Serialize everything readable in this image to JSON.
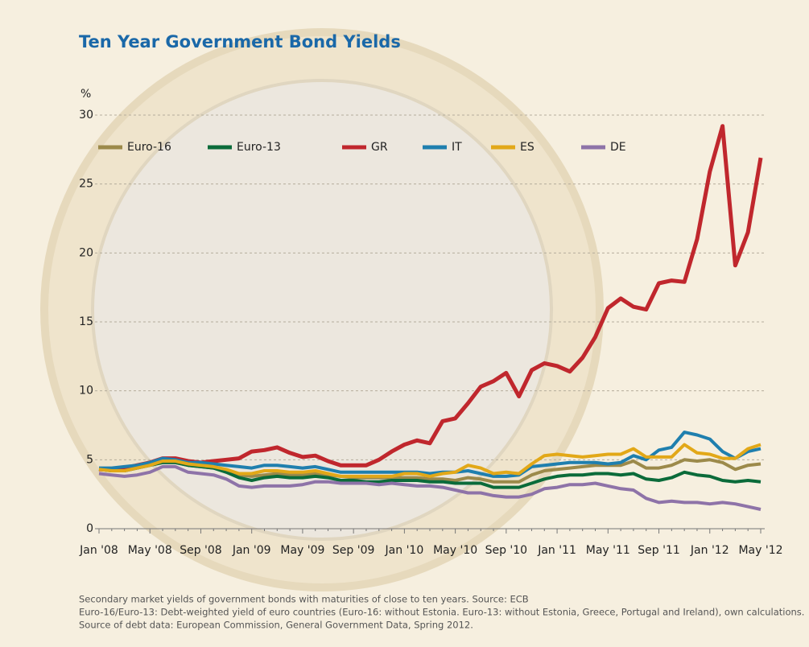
{
  "chart_data": {
    "type": "line",
    "title": "Ten Year Government Bond Yields",
    "y_label": "%",
    "categories": [
      "Jan '08",
      null,
      null,
      null,
      "May '08",
      null,
      null,
      null,
      "Sep '08",
      null,
      null,
      null,
      "Jan '09",
      null,
      null,
      null,
      "May '09",
      null,
      null,
      null,
      "Sep '09",
      null,
      null,
      null,
      "Jan '10",
      null,
      null,
      null,
      "May '10",
      null,
      null,
      null,
      "Sep '10",
      null,
      null,
      null,
      "Jan '11",
      null,
      null,
      null,
      "May '11",
      null,
      null,
      null,
      "Sep '11",
      null,
      null,
      null,
      "Jan '12",
      null,
      null,
      null,
      "May '12"
    ],
    "ylim": [
      0,
      30
    ],
    "yticks": [
      0,
      5,
      10,
      15,
      20,
      25,
      30
    ],
    "grid": true,
    "series": [
      {
        "name": "Euro-16",
        "color": "#9c8a4a",
        "values": [
          4.3,
          4.2,
          4.2,
          4.4,
          4.6,
          4.8,
          4.8,
          4.6,
          4.5,
          4.4,
          4.2,
          3.9,
          3.8,
          3.9,
          4.0,
          3.9,
          3.9,
          4.0,
          3.9,
          3.8,
          3.7,
          3.7,
          3.7,
          3.7,
          3.7,
          3.7,
          3.6,
          3.6,
          3.5,
          3.7,
          3.6,
          3.4,
          3.4,
          3.4,
          3.9,
          4.2,
          4.3,
          4.4,
          4.5,
          4.6,
          4.6,
          4.6,
          4.9,
          4.4,
          4.4,
          4.6,
          5.0,
          4.9,
          5.0,
          4.8,
          4.3,
          4.6,
          4.7
        ]
      },
      {
        "name": "Euro-13",
        "color": "#0b6b3a",
        "values": [
          4.3,
          4.2,
          4.2,
          4.4,
          4.6,
          4.8,
          4.8,
          4.6,
          4.5,
          4.4,
          4.1,
          3.7,
          3.5,
          3.7,
          3.8,
          3.7,
          3.7,
          3.8,
          3.7,
          3.5,
          3.5,
          3.4,
          3.4,
          3.5,
          3.5,
          3.5,
          3.4,
          3.4,
          3.3,
          3.3,
          3.3,
          3.0,
          3.0,
          3.0,
          3.3,
          3.6,
          3.8,
          3.9,
          3.9,
          4.0,
          4.0,
          3.9,
          4.0,
          3.6,
          3.5,
          3.7,
          4.1,
          3.9,
          3.8,
          3.5,
          3.4,
          3.5,
          3.4
        ]
      },
      {
        "name": "GR",
        "color": "#c0272d",
        "values": [
          4.3,
          4.3,
          4.4,
          4.6,
          4.8,
          5.1,
          5.1,
          4.9,
          4.8,
          4.9,
          5.0,
          5.1,
          5.6,
          5.7,
          5.9,
          5.5,
          5.2,
          5.3,
          4.9,
          4.6,
          4.6,
          4.6,
          5.0,
          5.6,
          6.1,
          6.4,
          6.2,
          7.8,
          8.0,
          9.1,
          10.3,
          10.7,
          11.3,
          9.6,
          11.5,
          12.0,
          11.8,
          11.4,
          12.4,
          13.9,
          16.0,
          16.7,
          16.1,
          15.9,
          17.8,
          18.0,
          17.9,
          21.0,
          25.9,
          29.2,
          19.1,
          21.5,
          26.9
        ]
      },
      {
        "name": "IT",
        "color": "#1f7fae",
        "values": [
          4.4,
          4.4,
          4.5,
          4.6,
          4.8,
          5.1,
          5.0,
          4.8,
          4.8,
          4.7,
          4.6,
          4.5,
          4.4,
          4.6,
          4.6,
          4.5,
          4.4,
          4.5,
          4.3,
          4.1,
          4.1,
          4.1,
          4.1,
          4.1,
          4.1,
          4.1,
          4.0,
          4.1,
          4.1,
          4.2,
          4.0,
          3.8,
          3.8,
          3.9,
          4.5,
          4.6,
          4.7,
          4.8,
          4.8,
          4.8,
          4.7,
          4.8,
          5.3,
          5.0,
          5.7,
          5.9,
          7.0,
          6.8,
          6.5,
          5.6,
          5.1,
          5.6,
          5.8
        ]
      },
      {
        "name": "ES",
        "color": "#e2a818",
        "values": [
          4.3,
          4.2,
          4.2,
          4.4,
          4.6,
          4.9,
          4.9,
          4.7,
          4.6,
          4.5,
          4.3,
          4.0,
          4.0,
          4.2,
          4.2,
          4.1,
          4.1,
          4.2,
          4.0,
          3.8,
          3.8,
          3.8,
          3.8,
          3.8,
          4.0,
          4.0,
          3.8,
          4.0,
          4.1,
          4.6,
          4.4,
          4.0,
          4.1,
          4.0,
          4.7,
          5.3,
          5.4,
          5.3,
          5.2,
          5.3,
          5.4,
          5.4,
          5.8,
          5.2,
          5.2,
          5.2,
          6.1,
          5.5,
          5.4,
          5.1,
          5.1,
          5.8,
          6.1
        ]
      },
      {
        "name": "DE",
        "color": "#8e73a8",
        "values": [
          4.0,
          3.9,
          3.8,
          3.9,
          4.1,
          4.5,
          4.5,
          4.1,
          4.0,
          3.9,
          3.6,
          3.1,
          3.0,
          3.1,
          3.1,
          3.1,
          3.2,
          3.4,
          3.4,
          3.3,
          3.3,
          3.3,
          3.2,
          3.3,
          3.2,
          3.1,
          3.1,
          3.0,
          2.8,
          2.6,
          2.6,
          2.4,
          2.3,
          2.3,
          2.5,
          2.9,
          3.0,
          3.2,
          3.2,
          3.3,
          3.1,
          2.9,
          2.8,
          2.2,
          1.9,
          2.0,
          1.9,
          1.9,
          1.8,
          1.9,
          1.8,
          1.6,
          1.4
        ]
      }
    ],
    "notes": [
      "Secondary market yields of government bonds with maturities of close to ten years. Source: ECB",
      "Euro-16/Euro-13: Debt-weighted yield of euro countries (Euro-16: without Estonia. Euro-13: without Estonia, Greece, Portugal and Ireland), own calculations.",
      "Source of debt data: European Commission, General Government Data, Spring 2012."
    ]
  }
}
